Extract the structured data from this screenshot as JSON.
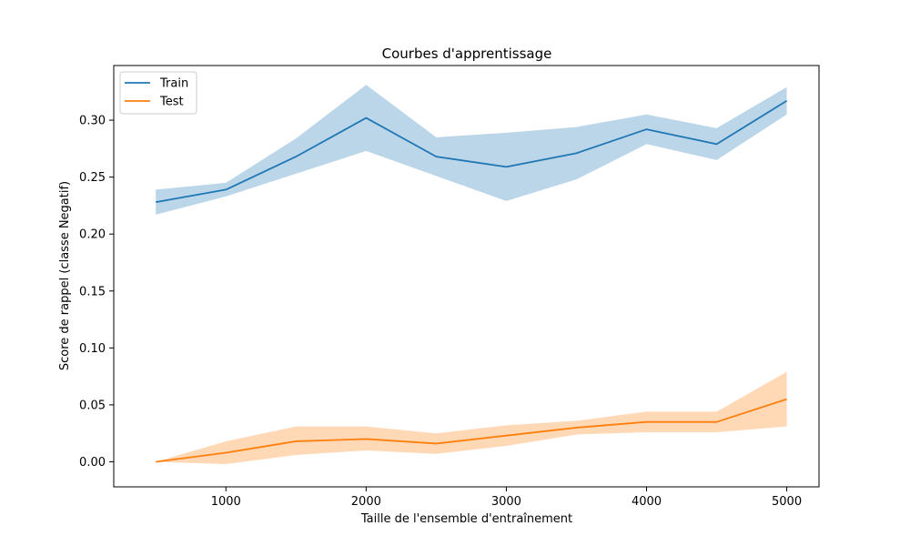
{
  "chart_data": {
    "type": "line",
    "title": "Courbes d'apprentissage",
    "xlabel": "Taille de l'ensemble d'entraînement",
    "ylabel": "Score de rappel (classe Negatif)",
    "x": [
      500,
      1000,
      1500,
      2000,
      2500,
      3000,
      3500,
      4000,
      4500,
      5000
    ],
    "xlim": [
      200,
      5230
    ],
    "ylim": [
      -0.022,
      0.348
    ],
    "xticks": [
      1000,
      2000,
      3000,
      4000,
      5000
    ],
    "xtick_labels": [
      "1000",
      "2000",
      "3000",
      "4000",
      "5000"
    ],
    "yticks": [
      0.0,
      0.05,
      0.1,
      0.15,
      0.2,
      0.25,
      0.3
    ],
    "ytick_labels": [
      "0.00",
      "0.05",
      "0.10",
      "0.15",
      "0.20",
      "0.25",
      "0.30"
    ],
    "grid": false,
    "legend_position": "upper-left",
    "series": [
      {
        "name": "Train",
        "color": "#1f77b4",
        "values": [
          0.228,
          0.239,
          0.268,
          0.302,
          0.268,
          0.259,
          0.271,
          0.292,
          0.279,
          0.317
        ],
        "lower": [
          0.217,
          0.233,
          0.253,
          0.273,
          0.251,
          0.229,
          0.248,
          0.279,
          0.265,
          0.305
        ],
        "upper": [
          0.239,
          0.245,
          0.284,
          0.331,
          0.285,
          0.289,
          0.294,
          0.305,
          0.293,
          0.329
        ]
      },
      {
        "name": "Test",
        "color": "#ff7f0e",
        "values": [
          0.0,
          0.008,
          0.018,
          0.02,
          0.016,
          0.023,
          0.03,
          0.035,
          0.035,
          0.055
        ],
        "lower": [
          0.0,
          -0.002,
          0.006,
          0.01,
          0.007,
          0.014,
          0.024,
          0.026,
          0.026,
          0.031
        ],
        "upper": [
          0.0,
          0.018,
          0.031,
          0.031,
          0.025,
          0.032,
          0.036,
          0.044,
          0.044,
          0.079
        ]
      }
    ]
  }
}
